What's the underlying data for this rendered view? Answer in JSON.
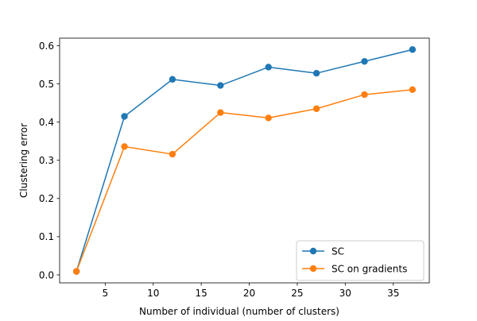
{
  "chart_data": {
    "type": "line",
    "title": "",
    "xlabel": "Number of individual (number of clusters)",
    "ylabel": "Clustering error",
    "xlim": [
      0.25,
      38.75
    ],
    "ylim": [
      -0.0209,
      0.6199
    ],
    "x_ticks": [
      5,
      10,
      15,
      20,
      25,
      30,
      35
    ],
    "y_ticks": [
      0.0,
      0.1,
      0.2,
      0.3,
      0.4,
      0.5,
      0.6
    ],
    "x_tick_labels": [
      "5",
      "10",
      "15",
      "20",
      "25",
      "30",
      "35"
    ],
    "y_tick_labels": [
      "0.0",
      "0.1",
      "0.2",
      "0.3",
      "0.4",
      "0.5",
      "0.6"
    ],
    "grid": false,
    "legend_position": "lower-right",
    "x": [
      2,
      7,
      12,
      17,
      22,
      27,
      32,
      37
    ],
    "series": [
      {
        "name": "SC",
        "color": "#1f77b4",
        "marker": "circle",
        "values": [
          0.009,
          0.415,
          0.512,
          0.496,
          0.544,
          0.528,
          0.559,
          0.59
        ]
      },
      {
        "name": "SC on gradients",
        "color": "#ff7f0e",
        "marker": "circle",
        "values": [
          0.009,
          0.336,
          0.316,
          0.425,
          0.411,
          0.435,
          0.472,
          0.485
        ]
      }
    ]
  }
}
